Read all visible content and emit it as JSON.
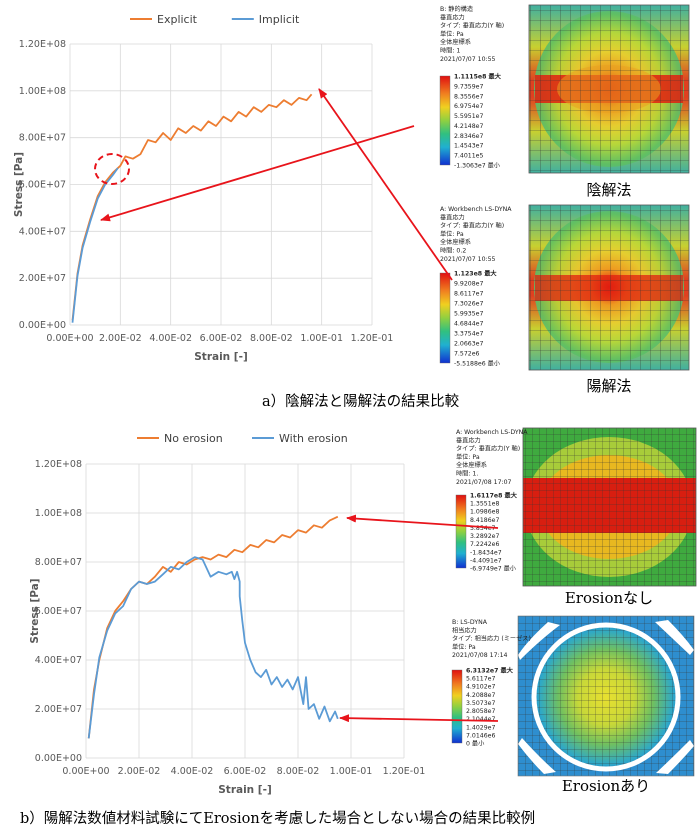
{
  "colors": {
    "orange": "#ED7D31",
    "blue": "#5B9BD5",
    "red_arrow": "#E8141B",
    "grid": "#D9D9D9",
    "axis_text": "#595959"
  },
  "chart_data": [
    {
      "type": "line",
      "series": [
        {
          "name": "Explicit",
          "color": "#ED7D31",
          "x": [
            0.001,
            0.003,
            0.005,
            0.008,
            0.011,
            0.014,
            0.017,
            0.02,
            0.022,
            0.025,
            0.028,
            0.031,
            0.034,
            0.037,
            0.04,
            0.043,
            0.046,
            0.049,
            0.052,
            0.055,
            0.058,
            0.061,
            0.064,
            0.067,
            0.07,
            0.073,
            0.076,
            0.079,
            0.082,
            0.085,
            0.088,
            0.091,
            0.094,
            0.096
          ],
          "y": [
            2000000.0,
            22000000.0,
            34000000.0,
            45000000.0,
            55000000.0,
            61000000.0,
            65000000.0,
            68000000.0,
            72000000.0,
            71000000.0,
            73000000.0,
            79000000.0,
            78000000.0,
            82000000.0,
            79000000.0,
            84000000.0,
            82000000.0,
            85000000.0,
            83000000.0,
            87000000.0,
            85000000.0,
            89000000.0,
            87000000.0,
            91000000.0,
            89000000.0,
            93000000.0,
            91000000.0,
            94000000.0,
            93000000.0,
            96000000.0,
            94000000.0,
            97000000.0,
            96000000.0,
            98500000.0
          ]
        },
        {
          "name": "Implicit",
          "color": "#5B9BD5",
          "x": [
            0.001,
            0.003,
            0.005,
            0.008,
            0.011,
            0.014,
            0.017,
            0.019
          ],
          "y": [
            1000000.0,
            21000000.0,
            33000000.0,
            44000000.0,
            54000000.0,
            60000000.0,
            64000000.0,
            67000000.0
          ]
        }
      ],
      "xlabel": "Strain [-]",
      "ylabel": "Stress [Pa]",
      "xlim": [
        0,
        0.12
      ],
      "ylim": [
        0,
        120000000.0
      ],
      "xticks": [
        "0.00E+00",
        "2.00E-02",
        "4.00E-02",
        "6.00E-02",
        "8.00E-02",
        "1.00E-01",
        "1.20E-01"
      ],
      "yticks": [
        "0.00E+00",
        "2.00E+07",
        "4.00E+07",
        "6.00E+07",
        "8.00E+07",
        "1.00E+08",
        "1.20E+08"
      ],
      "grid": true,
      "legend": "top"
    },
    {
      "type": "line",
      "series": [
        {
          "name": "No erosion",
          "color": "#ED7D31",
          "x": [
            0.001,
            0.003,
            0.005,
            0.008,
            0.011,
            0.014,
            0.017,
            0.02,
            0.023,
            0.026,
            0.029,
            0.032,
            0.035,
            0.038,
            0.041,
            0.044,
            0.047,
            0.05,
            0.053,
            0.056,
            0.059,
            0.062,
            0.065,
            0.068,
            0.071,
            0.074,
            0.077,
            0.08,
            0.083,
            0.086,
            0.089,
            0.092,
            0.095
          ],
          "y": [
            8000000.0,
            28000000.0,
            40000000.0,
            53000000.0,
            60000000.0,
            64000000.0,
            69000000.0,
            72000000.0,
            71000000.0,
            74000000.0,
            78000000.0,
            76000000.0,
            80000000.0,
            79000000.0,
            81000000.0,
            82000000.0,
            81000000.0,
            83000000.0,
            82000000.0,
            85000000.0,
            84000000.0,
            87000000.0,
            86000000.0,
            89000000.0,
            88000000.0,
            91000000.0,
            90000000.0,
            93000000.0,
            92000000.0,
            95000000.0,
            94000000.0,
            97000000.0,
            98500000.0
          ]
        },
        {
          "name": "With erosion",
          "color": "#5B9BD5",
          "x": [
            0.001,
            0.003,
            0.005,
            0.008,
            0.011,
            0.014,
            0.017,
            0.02,
            0.023,
            0.026,
            0.029,
            0.032,
            0.035,
            0.038,
            0.041,
            0.044,
            0.047,
            0.05,
            0.053,
            0.055,
            0.056,
            0.057,
            0.058,
            0.058,
            0.059,
            0.06,
            0.062,
            0.064,
            0.066,
            0.068,
            0.07,
            0.072,
            0.074,
            0.076,
            0.078,
            0.08,
            0.082,
            0.083,
            0.084,
            0.086,
            0.088,
            0.09,
            0.092,
            0.094,
            0.095
          ],
          "y": [
            8000000.0,
            26000000.0,
            41000000.0,
            52000000.0,
            59000000.0,
            62000000.0,
            69000000.0,
            72000000.0,
            71000000.0,
            72000000.0,
            75000000.0,
            78000000.0,
            77000000.0,
            80000000.0,
            82000000.0,
            81000000.0,
            74000000.0,
            76000000.0,
            75000000.0,
            76000000.0,
            73000000.0,
            76000000.0,
            72000000.0,
            66000000.0,
            56000000.0,
            47000000.0,
            40000000.0,
            35000000.0,
            33000000.0,
            36000000.0,
            30000000.0,
            33000000.0,
            29000000.0,
            32000000.0,
            28000000.0,
            33000000.0,
            22000000.0,
            33000000.0,
            20000000.0,
            22000000.0,
            16000000.0,
            21000000.0,
            15000000.0,
            19000000.0,
            16000000.0
          ]
        }
      ],
      "xlabel": "Strain [-]",
      "ylabel": "Stress [Pa]",
      "xlim": [
        0,
        0.12
      ],
      "ylim": [
        0,
        120000000.0
      ],
      "xticks": [
        "0.00E+00",
        "2.00E-02",
        "4.00E-02",
        "6.00E-02",
        "8.00E-02",
        "1.00E-01",
        "1.20E-01"
      ],
      "yticks": [
        "0.00E+00",
        "2.00E+07",
        "4.00E+07",
        "6.00E+07",
        "8.00E+07",
        "1.00E+08",
        "1.20E+08"
      ],
      "grid": true,
      "legend": "top"
    }
  ],
  "panel_a": {
    "caption": "a）陰解法と陽解法の結果比較",
    "implicit_image_label": "陰解法",
    "explicit_image_label": "陽解法",
    "legend1": {
      "header": [
        "B: 静的構造",
        "垂直応力",
        "タイプ: 垂直応力(Y 軸)",
        "単位: Pa",
        "全体座標系",
        "時間: 1",
        "2021/07/07 10:55"
      ],
      "values": [
        "1.1115e8 最大",
        "9.7359e7",
        "8.3556e7",
        "6.9754e7",
        "5.5951e7",
        "4.2148e7",
        "2.8346e7",
        "1.4543e7",
        "7.4011e5",
        "-1.3063e7 最小"
      ]
    },
    "legend2": {
      "header": [
        "A: Workbench LS-DYNA",
        "垂直応力",
        "タイプ: 垂直応力(Y 軸)",
        "単位: Pa",
        "全体座標系",
        "時間: 0.2",
        "2021/07/07 10:55"
      ],
      "values": [
        "1.123e8 最大",
        "9.9208e7",
        "8.6117e7",
        "7.3026e7",
        "5.9935e7",
        "4.6844e7",
        "3.3754e7",
        "2.0663e7",
        "7.572e6",
        "-5.5188e6 最小"
      ]
    }
  },
  "panel_b": {
    "caption": "b）陽解法数値材料試験にてErosionを考慮した場合としない場合の結果比較例",
    "no_erosion_image_label": "Erosionなし",
    "erosion_image_label": "Erosionあり",
    "legend3": {
      "header": [
        "A: Workbench LS-DYNA",
        "垂直応力",
        "タイプ: 垂直応力(Y 軸)",
        "単位: Pa",
        "全体座標系",
        "時間: 1.",
        "2021/07/08 17:07"
      ],
      "values": [
        "1.6117e8 最大",
        "1.3551e8",
        "1.0986e8",
        "8.4186e7",
        "5.854e7",
        "3.2892e7",
        "7.2242e6",
        "-1.8434e7",
        "-4.4091e7",
        "-6.9749e7 最小"
      ]
    },
    "legend4": {
      "header": [
        "B: LS-DYNA",
        "相当応力",
        "タイプ: 相当応力 (ミーゼス)",
        "単位: Pa",
        "2021/07/08 17:14"
      ],
      "values": [
        "6.3132e7 最大",
        "5.6117e7",
        "4.9102e7",
        "4.2088e7",
        "3.5073e7",
        "2.8058e7",
        "2.1044e7",
        "1.4029e7",
        "7.0146e6",
        "0 最小"
      ]
    }
  }
}
